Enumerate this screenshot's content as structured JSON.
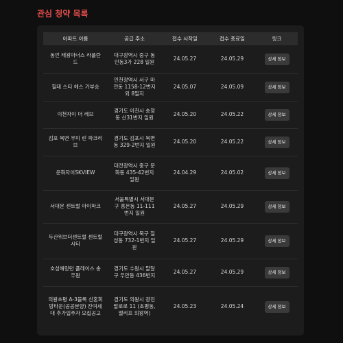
{
  "page": {
    "title": "관심 청약 목록"
  },
  "table": {
    "headers": [
      "아파트 이름",
      "공급 주소",
      "접수 시작일",
      "접수 종료일",
      "링크"
    ],
    "detail_label": "상세 정보",
    "rows": [
      {
        "name": "동인 태왕아너스 라플란드",
        "address": "대구광역시 중구 동인동3가 228 일원",
        "start": "24.05.27",
        "end": "24.05.29",
        "link": "상세 정보"
      },
      {
        "name": "힐데 스티 헤스 가부승",
        "address": "인천광역시 서구 마전동 1158-12번지 외 8필지",
        "start": "24.05.07",
        "end": "24.05.09",
        "link": "상세 정보"
      },
      {
        "name": "이천자이 더 레브",
        "address": "경기도 이천시 송정동 산31번지 일원",
        "start": "24.05.20",
        "end": "24.05.22",
        "link": "상세 정보"
      },
      {
        "name": "김포 북변 우미 린 파크리브",
        "address": "경기도 김포시 북변동 329-2번지 일원",
        "start": "24.05.20",
        "end": "24.05.22",
        "link": "상세 정보"
      },
      {
        "name": "운화자이SKVIEW",
        "address": "대전광역시 중구 문화동 435-42번지 일원",
        "start": "24.04.29",
        "end": "24.05.02",
        "link": "상세 정보"
      },
      {
        "name": "서대문 센트럴 아이파크",
        "address": "서울특별시 서대문구 홍은동 11-111번지 일원",
        "start": "24.05.27",
        "end": "24.05.29",
        "link": "상세 정보"
      },
      {
        "name": "두산위브더센트럴 센트럴시티",
        "address": "대구광역시 북구 칠성동 732-1번지 일원",
        "start": "24.05.27",
        "end": "24.05.29",
        "link": "상세 정보"
      },
      {
        "name": "호성해링턴 플레이스 송우원",
        "address": "경기도 수원시 팔달구 우만동 436번지",
        "start": "24.05.27",
        "end": "24.05.29",
        "link": "상세 정보"
      },
      {
        "name": "의왕초평 A-3블록 신혼희망타운(공공분양) 잔여세대 추가입주자 모집공고",
        "address": "경기도 의왕시 광진발로로 11 (초평동, 엘리프 의왕역)",
        "start": "24.05.23",
        "end": "24.05.24",
        "link": "상세 정보"
      }
    ]
  }
}
